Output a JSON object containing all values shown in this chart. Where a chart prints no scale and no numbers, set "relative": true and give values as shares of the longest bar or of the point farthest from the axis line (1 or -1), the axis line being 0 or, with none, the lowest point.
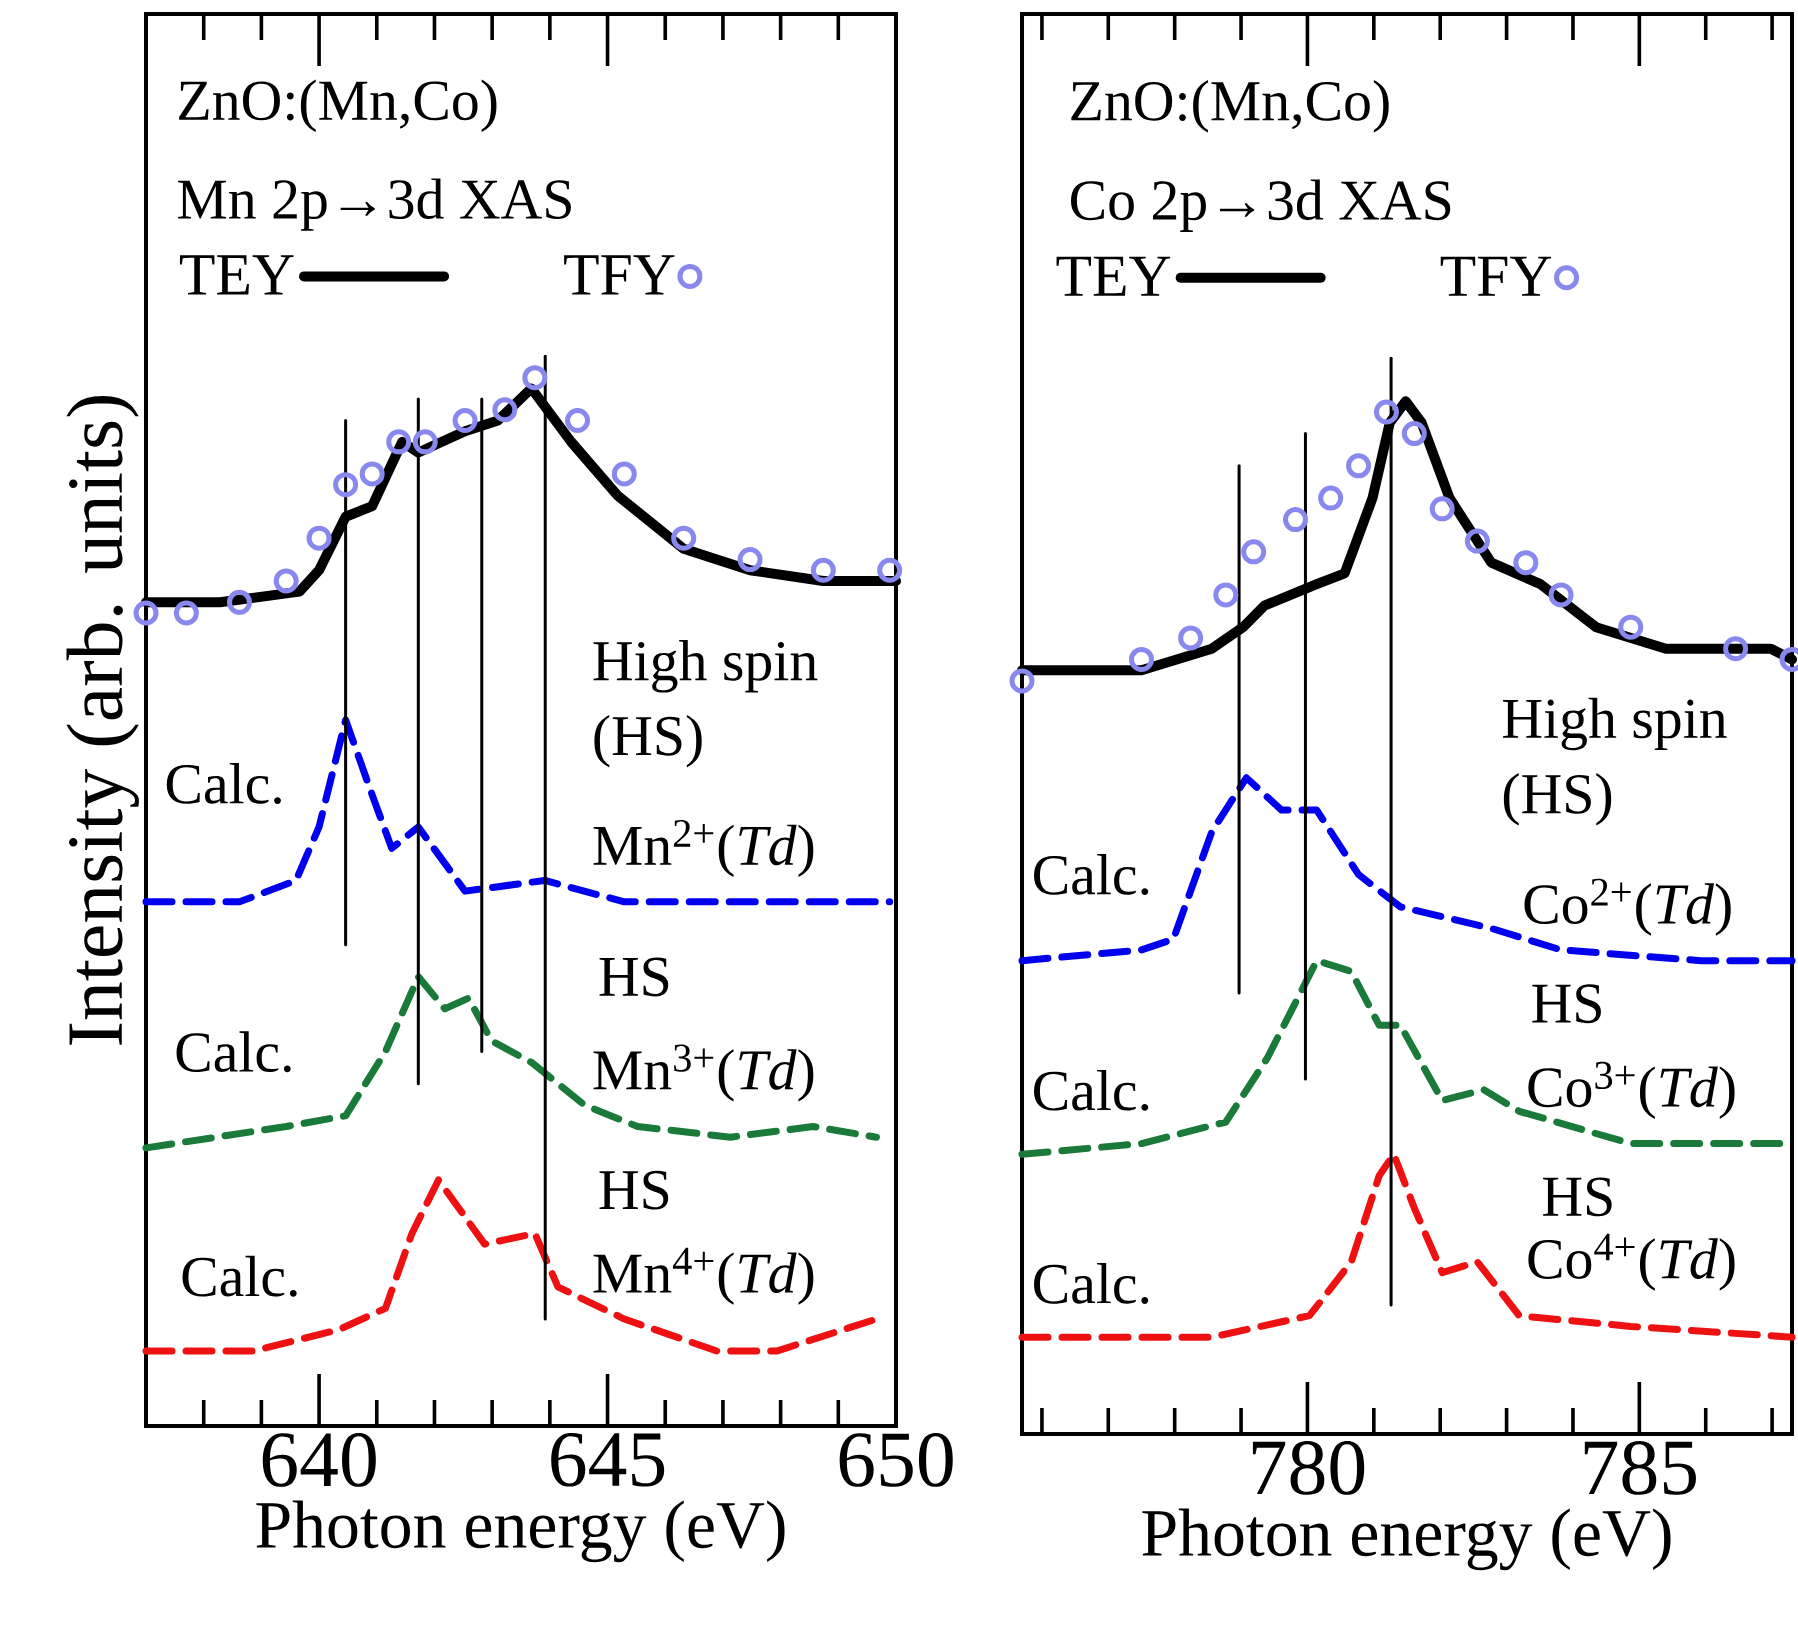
{
  "chart_data": [
    {
      "type": "line",
      "relative": true,
      "title": "ZnO:(Mn,Co)",
      "subtitle": "Mn 2p→3d XAS",
      "xlabel": "Photon energy (eV)",
      "ylabel": "Intensity (arb. units)",
      "legend": "top left",
      "xlim": [
        637,
        650
      ],
      "xticks": [
        {
          "value": 638,
          "label": null
        },
        {
          "value": 639,
          "label": null
        },
        640,
        {
          "value": 641,
          "label": null
        },
        {
          "value": 642,
          "label": null
        },
        {
          "value": 643,
          "label": null
        },
        {
          "value": 644,
          "label": null
        },
        645,
        {
          "value": 646,
          "label": null
        },
        {
          "value": 647,
          "label": null
        },
        {
          "value": 648,
          "label": null
        },
        {
          "value": 649,
          "label": null
        },
        650
      ],
      "series": [
        {
          "name": "TEY",
          "color": "#000000",
          "line_style": "solid",
          "x": [
            637.0,
            638.28,
            639.66,
            640.0,
            640.46,
            640.92,
            641.44,
            641.72,
            642.53,
            643.1,
            643.68,
            644.37,
            645.17,
            646.32,
            647.47,
            648.74,
            650.0
          ],
          "values": [
            0.77,
            0.77,
            0.78,
            0.8,
            0.85,
            0.86,
            0.92,
            0.91,
            0.93,
            0.94,
            0.97,
            0.92,
            0.87,
            0.82,
            0.8,
            0.79,
            0.79
          ]
        },
        {
          "name": "TFY",
          "type": "scatter",
          "marker": "circle",
          "color": "#8888ee",
          "x": [
            637.0,
            637.7,
            638.62,
            639.43,
            640.0,
            640.46,
            640.92,
            641.38,
            641.84,
            642.53,
            643.22,
            643.74,
            644.48,
            645.29,
            646.32,
            647.47,
            648.74,
            649.89
          ],
          "values": [
            0.76,
            0.76,
            0.77,
            0.79,
            0.83,
            0.88,
            0.89,
            0.92,
            0.92,
            0.94,
            0.95,
            0.98,
            0.94,
            0.89,
            0.83,
            0.81,
            0.8,
            0.8
          ]
        },
        {
          "color": "#0000ee",
          "line_style": "dashed",
          "x": [
            637.0,
            638.62,
            639.6,
            640.0,
            640.46,
            640.92,
            641.26,
            641.72,
            642.53,
            643.91,
            645.29,
            648.05,
            649.89
          ],
          "values": [
            0.49,
            0.49,
            0.51,
            0.56,
            0.66,
            0.59,
            0.54,
            0.56,
            0.5,
            0.51,
            0.49,
            0.49,
            0.49
          ]
        },
        {
          "color": "#1a7a3a",
          "line_style": "dashed",
          "x": [
            637.0,
            639.43,
            640.46,
            641.15,
            641.72,
            642.18,
            642.59,
            642.99,
            643.68,
            644.6,
            645.52,
            647.13,
            648.56,
            649.66
          ],
          "values": [
            0.26,
            0.28,
            0.29,
            0.35,
            0.42,
            0.39,
            0.4,
            0.36,
            0.34,
            0.3,
            0.28,
            0.27,
            0.28,
            0.27
          ]
        },
        {
          "color": "#ee1111",
          "line_style": "dashed",
          "x": [
            637.0,
            638.85,
            640.34,
            641.15,
            641.61,
            642.07,
            642.87,
            643.74,
            644.14,
            645.29,
            646.9,
            647.93,
            649.66
          ],
          "values": [
            0.07,
            0.07,
            0.09,
            0.11,
            0.18,
            0.23,
            0.17,
            0.18,
            0.13,
            0.1,
            0.07,
            0.07,
            0.1
          ]
        },
        {
          "color": "#000000",
          "line_style": "solid",
          "x": [
            640.46,
            640.46
          ],
          "values": [
            0.45,
            0.94
          ]
        },
        {
          "color": "#000000",
          "line_style": "solid",
          "x": [
            641.72,
            641.72
          ],
          "values": [
            0.32,
            0.96
          ]
        },
        {
          "color": "#000000",
          "line_style": "solid",
          "x": [
            642.82,
            642.82
          ],
          "values": [
            0.35,
            0.96
          ]
        },
        {
          "color": "#000000",
          "line_style": "solid",
          "x": [
            643.92,
            643.92
          ],
          "values": [
            0.1,
            1.0
          ]
        }
      ],
      "annotations": [
        "High spin",
        "(HS)",
        "Mn$^{2+}$(*Td*)",
        "Calc.",
        "HS",
        "Mn$^{3+}$(*Td*)",
        "Calc.",
        "HS",
        "Mn$^{4+}$(*Td*)",
        "Calc."
      ]
    },
    {
      "type": "line",
      "relative": true,
      "title": "ZnO:(Mn,Co)",
      "subtitle": "Co 2p→3d XAS",
      "xlabel": "Photon energy (eV)",
      "legend": "top left",
      "xlim": [
        775.7,
        787.3
      ],
      "xticks": [
        {
          "value": 776,
          "label": null
        },
        {
          "value": 777,
          "label": null
        },
        {
          "value": 778,
          "label": null
        },
        {
          "value": 779,
          "label": null
        },
        780,
        {
          "value": 781,
          "label": null
        },
        {
          "value": 782,
          "label": null
        },
        {
          "value": 783,
          "label": null
        },
        {
          "value": 784,
          "label": null
        },
        785,
        {
          "value": 786,
          "label": null
        },
        {
          "value": 787,
          "label": null
        }
      ],
      "series": [
        {
          "name": "TEY",
          "color": "#000000",
          "line_style": "solid",
          "x": [
            775.7,
            777.5,
            778.56,
            779.03,
            779.35,
            780.14,
            780.56,
            780.98,
            781.24,
            781.48,
            781.72,
            782.14,
            782.77,
            783.51,
            784.35,
            785.4,
            786.98,
            787.3
          ],
          "values": [
            0.71,
            0.71,
            0.73,
            0.75,
            0.77,
            0.79,
            0.8,
            0.87,
            0.94,
            0.96,
            0.94,
            0.87,
            0.81,
            0.79,
            0.75,
            0.73,
            0.73,
            0.72
          ]
        },
        {
          "name": "TFY",
          "type": "scatter",
          "marker": "circle",
          "color": "#8888ee",
          "x": [
            775.7,
            777.5,
            778.24,
            778.77,
            779.19,
            779.82,
            780.35,
            780.77,
            781.19,
            781.61,
            782.03,
            782.56,
            783.29,
            783.82,
            784.87,
            786.45,
            787.3
          ],
          "values": [
            0.7,
            0.72,
            0.74,
            0.78,
            0.82,
            0.85,
            0.87,
            0.9,
            0.95,
            0.93,
            0.86,
            0.83,
            0.81,
            0.78,
            0.75,
            0.73,
            0.72
          ]
        },
        {
          "color": "#0000ee",
          "line_style": "dashed",
          "x": [
            775.7,
            777.5,
            777.98,
            778.56,
            779.08,
            779.61,
            780.14,
            780.77,
            781.4,
            782.77,
            783.82,
            785.93,
            787.3
          ],
          "values": [
            0.44,
            0.45,
            0.46,
            0.56,
            0.61,
            0.58,
            0.58,
            0.52,
            0.49,
            0.47,
            0.45,
            0.44,
            0.44
          ]
        },
        {
          "color": "#1a7a3a",
          "line_style": "dashed",
          "x": [
            775.7,
            777.5,
            778.77,
            779.4,
            780.14,
            780.66,
            781.08,
            781.4,
            782.03,
            782.66,
            783.19,
            784.87,
            787.3
          ],
          "values": [
            0.26,
            0.27,
            0.29,
            0.35,
            0.44,
            0.43,
            0.38,
            0.38,
            0.31,
            0.32,
            0.3,
            0.27,
            0.27
          ]
        },
        {
          "color": "#ee1111",
          "line_style": "dashed",
          "x": [
            775.7,
            778.56,
            780.03,
            780.66,
            781.08,
            781.3,
            781.61,
            782.03,
            782.56,
            783.19,
            784.87,
            787.3
          ],
          "values": [
            0.09,
            0.09,
            0.11,
            0.16,
            0.24,
            0.26,
            0.21,
            0.15,
            0.16,
            0.11,
            0.1,
            0.09
          ]
        },
        {
          "color": "#000000",
          "line_style": "solid",
          "x": [
            778.97,
            778.97
          ],
          "values": [
            0.41,
            0.9
          ]
        },
        {
          "color": "#000000",
          "line_style": "solid",
          "x": [
            779.97,
            779.97
          ],
          "values": [
            0.33,
            0.93
          ]
        },
        {
          "color": "#000000",
          "line_style": "solid",
          "x": [
            781.26,
            781.26
          ],
          "values": [
            0.12,
            1.0
          ]
        }
      ],
      "annotations": [
        "High spin",
        "(HS)",
        "Co$^{2+}$(*Td*)",
        "Calc.",
        "HS",
        "Co$^{3+}$(*Td*)",
        "Calc.",
        "HS",
        "Co$^{4+}$(*Td*)",
        "Calc."
      ]
    }
  ]
}
